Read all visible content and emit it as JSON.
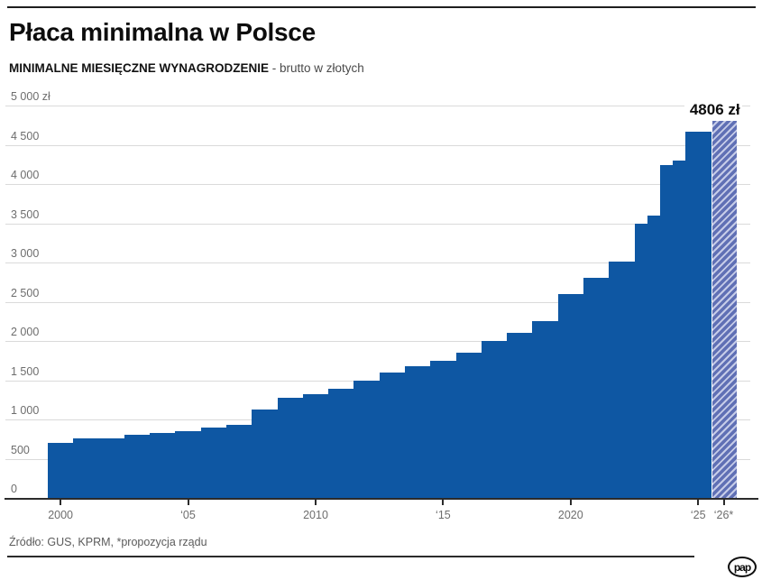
{
  "header": {
    "title": "Płaca minimalna w Polsce",
    "subtitle_bold": "MINIMALNE MIESIĘCZNE WYNAGRODZENIE",
    "subtitle_rest": " - brutto w złotych"
  },
  "footer": {
    "source": "Źródło: GUS, KPRM, *propozycja rządu",
    "logo_text": "pap"
  },
  "colors": {
    "bar": "#0e57a3",
    "proposed_hatch_dark": "#6070b5",
    "proposed_hatch_light": "#c6cce8",
    "axis": "#2b2b2b",
    "gridline": "#dadada",
    "tick_label": "#6d6d6d"
  },
  "chart_data": {
    "type": "bar",
    "title": "Płaca minimalna w Polsce",
    "subtitle": "MINIMALNE MIESIĘCZNE WYNAGRODZENIE - brutto w złotych",
    "unit": "zł",
    "grid": true,
    "legend_position": "none",
    "ylim": [
      0,
      5000
    ],
    "ytick_step": 500,
    "ytick_labels": [
      "0",
      "500",
      "1 000",
      "1 500",
      "2 000",
      "2 500",
      "3 000",
      "3 500",
      "4 000",
      "4 500",
      "5 000 zł"
    ],
    "xticks": [
      {
        "year": 2000,
        "label": "2000"
      },
      {
        "year": 2005,
        "label": "‘05"
      },
      {
        "year": 2010,
        "label": "2010"
      },
      {
        "year": 2015,
        "label": "‘15"
      },
      {
        "year": 2020,
        "label": "2020"
      },
      {
        "year": 2025,
        "label": "‘25"
      },
      {
        "year": 2026,
        "label": "‘26*"
      }
    ],
    "annotation": {
      "text": "4806 zł",
      "year": 2026
    },
    "series_name": "Minimalne miesięczne wynagrodzenie brutto w złotych",
    "values": [
      {
        "year": 2000,
        "value": 700
      },
      {
        "year": 2001,
        "value": 760
      },
      {
        "year": 2002,
        "value": 760
      },
      {
        "year": 2003,
        "value": 800
      },
      {
        "year": 2004,
        "value": 824
      },
      {
        "year": 2005,
        "value": 849
      },
      {
        "year": 2006,
        "value": 899
      },
      {
        "year": 2007,
        "value": 936
      },
      {
        "year": 2008,
        "value": 1126
      },
      {
        "year": 2009,
        "value": 1276
      },
      {
        "year": 2010,
        "value": 1317
      },
      {
        "year": 2011,
        "value": 1386
      },
      {
        "year": 2012,
        "value": 1500
      },
      {
        "year": 2013,
        "value": 1600
      },
      {
        "year": 2014,
        "value": 1680
      },
      {
        "year": 2015,
        "value": 1750
      },
      {
        "year": 2016,
        "value": 1850
      },
      {
        "year": 2017,
        "value": 2000
      },
      {
        "year": 2018,
        "value": 2100
      },
      {
        "year": 2019,
        "value": 2250
      },
      {
        "year": 2020,
        "value": 2600
      },
      {
        "year": 2021,
        "value": 2800
      },
      {
        "year": 2022,
        "value": 3010
      },
      {
        "year": 2023,
        "value": 3490,
        "mid_year_value": 3600
      },
      {
        "year": 2024,
        "value": 4242,
        "mid_year_value": 4300
      },
      {
        "year": 2025,
        "value": 4666
      },
      {
        "year": 2026,
        "value": 4806,
        "proposed": true
      }
    ]
  }
}
